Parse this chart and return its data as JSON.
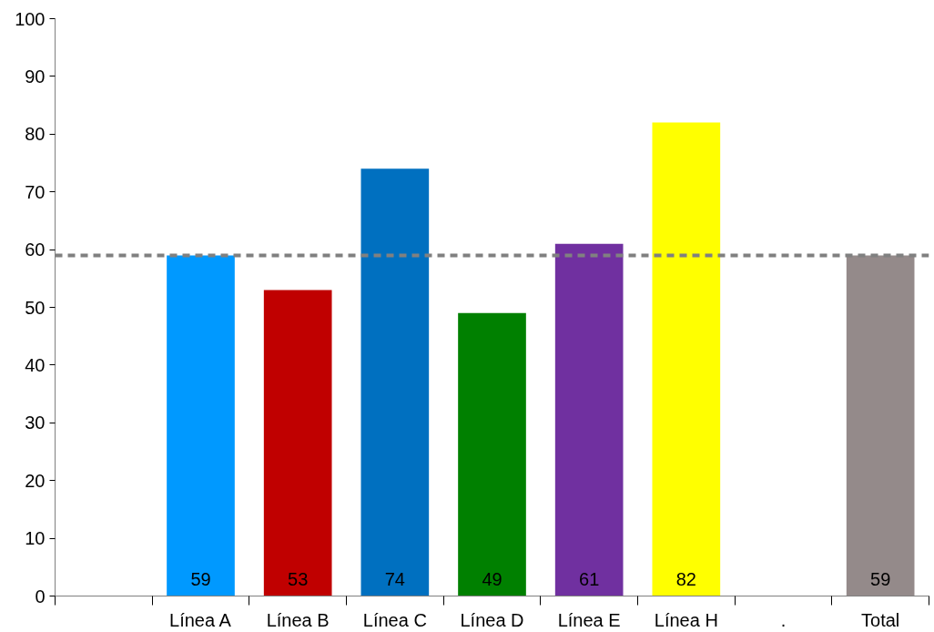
{
  "chart_data": {
    "type": "bar",
    "categories": [
      null,
      "Línea A",
      "Línea B",
      "Línea C",
      "Línea D",
      "Línea E",
      "Línea H",
      ".",
      "Total"
    ],
    "values": [
      null,
      59,
      53,
      74,
      49,
      61,
      82,
      null,
      59
    ],
    "colors": [
      "#ffffff",
      "#0099ff",
      "#c00000",
      "#0070c0",
      "#008000",
      "#7030a0",
      "#ffff00",
      "#ffffff",
      "#948a8a"
    ],
    "ylim": [
      0,
      100
    ],
    "yticks": [
      0,
      10,
      20,
      30,
      40,
      50,
      60,
      70,
      80,
      90,
      100
    ],
    "ref_lines": [
      {
        "axis": "y",
        "value": 59,
        "color": "#808080",
        "line_style": "dashed"
      }
    ],
    "data_labels": true,
    "grid": false
  }
}
